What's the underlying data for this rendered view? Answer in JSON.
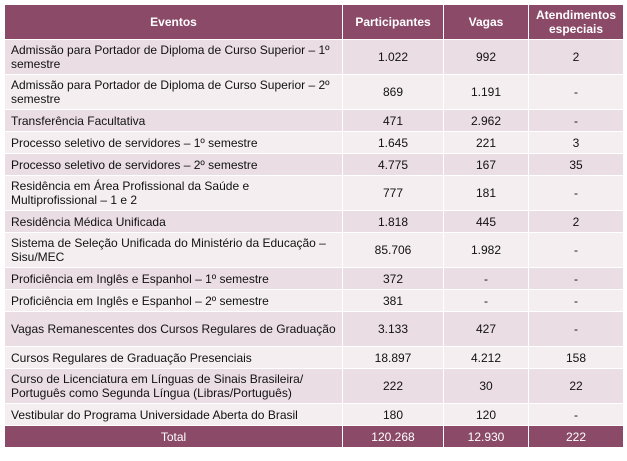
{
  "headers": [
    "Eventos",
    "Participantes",
    "Vagas",
    "Atendimentos especiais"
  ],
  "rows": [
    {
      "evento": "Admissão para Portador de Diploma de Curso Superior – 1º semestre",
      "participantes": "1.022",
      "vagas": "992",
      "atendimentos": "2"
    },
    {
      "evento": "Admissão para Portador de Diploma de Curso Superior – 2º semestre",
      "participantes": "869",
      "vagas": "1.191",
      "atendimentos": "-"
    },
    {
      "evento": "Transferência Facultativa",
      "participantes": "471",
      "vagas": "2.962",
      "atendimentos": "-"
    },
    {
      "evento": "Processo seletivo de servidores – 1º semestre",
      "participantes": "1.645",
      "vagas": "221",
      "atendimentos": "3"
    },
    {
      "evento": "Processo seletivo de servidores – 2º semestre",
      "participantes": "4.775",
      "vagas": "167",
      "atendimentos": "35"
    },
    {
      "evento": "Residência em Área Profissional da Saúde e Multiprofissional – 1 e 2",
      "participantes": "777",
      "vagas": "181",
      "atendimentos": "-"
    },
    {
      "evento": "Residência Médica Unificada",
      "participantes": "1.818",
      "vagas": "445",
      "atendimentos": "2"
    },
    {
      "evento": "Sistema de Seleção Unificada do Ministério da Educação – Sisu/MEC",
      "participantes": "85.706",
      "vagas": "1.982",
      "atendimentos": "-"
    },
    {
      "evento": "Proficiência em Inglês e Espanhol – 1º semestre",
      "participantes": "372",
      "vagas": "-",
      "atendimentos": "-"
    },
    {
      "evento": "Proficiência em Inglês e Espanhol – 2º semestre",
      "participantes": "381",
      "vagas": "-",
      "atendimentos": "-"
    },
    {
      "evento": "Vagas Remanescentes dos Cursos Regulares de Graduação",
      "participantes": "3.133",
      "vagas": "427",
      "atendimentos": "-"
    },
    {
      "evento": "Cursos Regulares de Graduação Presenciais",
      "participantes": "18.897",
      "vagas": "4.212",
      "atendimentos": "158"
    },
    {
      "evento": "Curso de Licenciatura em Línguas de Sinais Brasileira/ Português como Segunda Língua (Libras/Português)",
      "participantes": "222",
      "vagas": "30",
      "atendimentos": "22"
    },
    {
      "evento": "Vestibular do Programa Universidade Aberta do Brasil",
      "participantes": "180",
      "vagas": "120",
      "atendimentos": "-"
    }
  ],
  "total": {
    "label": "Total",
    "participantes": "120.268",
    "vagas": "12.930",
    "atendimentos": "222"
  }
}
